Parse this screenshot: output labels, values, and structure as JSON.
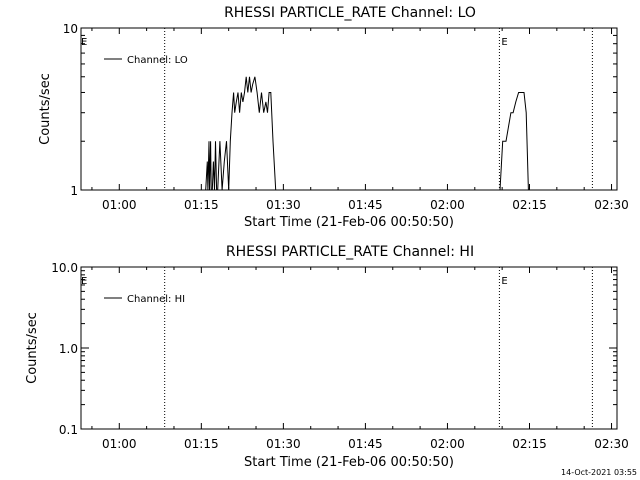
{
  "footer": {
    "timestamp": "14-Oct-2021 03:55"
  },
  "colors": {
    "axis": "#000000",
    "line": "#000000",
    "background": "#ffffff"
  },
  "chart_data": [
    {
      "type": "line",
      "title": "RHESSI PARTICLE_RATE Channel: LO",
      "xlabel": "Start Time (21-Feb-06 00:50:50)",
      "ylabel": "Counts/sec",
      "yscale": "log",
      "ylim": [
        1,
        10
      ],
      "ytick_values": [
        1,
        10
      ],
      "ytick_labels": [
        "1",
        "10"
      ],
      "xlim_minutes": [
        53,
        151
      ],
      "xtick_values": [
        60,
        75,
        90,
        105,
        120,
        135,
        150
      ],
      "xtick_labels": [
        "01:00",
        "01:15",
        "01:30",
        "01:45",
        "02:00",
        "02:15",
        "02:30"
      ],
      "legend": {
        "label": "Channel: LO",
        "position": "top-left"
      },
      "event_markers": [
        {
          "x": 68.3,
          "label": ""
        },
        {
          "x": 129.5,
          "label": "E"
        },
        {
          "x": 146.5,
          "label": ""
        }
      ],
      "edge_label": "E",
      "grid": false,
      "series": [
        {
          "name": "Channel: LO",
          "x": [
            75.8,
            76.1,
            76.2,
            76.4,
            76.5,
            76.7,
            76.8,
            77.0,
            77.2,
            77.4,
            77.6,
            77.8,
            78.0,
            78.4,
            78.8,
            79.2,
            79.6,
            80.0,
            80.3,
            80.6,
            80.9,
            81.1,
            81.4,
            81.7,
            82.0,
            82.3,
            82.6,
            82.9,
            83.2,
            83.5,
            83.8,
            84.1,
            84.4,
            84.8,
            85.2,
            85.6,
            86.0,
            86.4,
            86.8,
            87.1,
            87.4,
            87.7,
            88.1,
            88.6,
            129.6,
            130.1,
            130.7,
            131.2,
            131.6,
            132.0,
            132.5,
            133.0,
            133.5,
            134.0,
            134.4,
            134.8
          ],
          "y": [
            1,
            1.5,
            1,
            2,
            1,
            2,
            1,
            1,
            1.5,
            1,
            2,
            1,
            1,
            2,
            1,
            1.5,
            2,
            1,
            2,
            3,
            4,
            3,
            3.5,
            4,
            3,
            4,
            3.5,
            4,
            5,
            4,
            5,
            4,
            4.5,
            5,
            4,
            3,
            4,
            3,
            3.5,
            3,
            4,
            4,
            2,
            1,
            1,
            2,
            2,
            2.5,
            3,
            3,
            3.5,
            4,
            4,
            4,
            3,
            1
          ]
        }
      ]
    },
    {
      "type": "line",
      "title": "RHESSI PARTICLE_RATE Channel: HI",
      "xlabel": "Start Time (21-Feb-06 00:50:50)",
      "ylabel": "Counts/sec",
      "yscale": "log",
      "ylim": [
        0.1,
        10
      ],
      "ytick_values": [
        0.1,
        1,
        10
      ],
      "ytick_labels": [
        "0.1",
        "1.0",
        "10.0"
      ],
      "xlim_minutes": [
        53,
        151
      ],
      "xtick_values": [
        60,
        75,
        90,
        105,
        120,
        135,
        150
      ],
      "xtick_labels": [
        "01:00",
        "01:15",
        "01:30",
        "01:45",
        "02:00",
        "02:15",
        "02:30"
      ],
      "legend": {
        "label": "Channel: HI",
        "position": "top-left"
      },
      "event_markers": [
        {
          "x": 68.3,
          "label": ""
        },
        {
          "x": 129.5,
          "label": "E"
        },
        {
          "x": 146.5,
          "label": ""
        }
      ],
      "edge_label": "E",
      "grid": false,
      "series": [
        {
          "name": "Channel: HI",
          "x": [],
          "y": []
        }
      ]
    }
  ]
}
